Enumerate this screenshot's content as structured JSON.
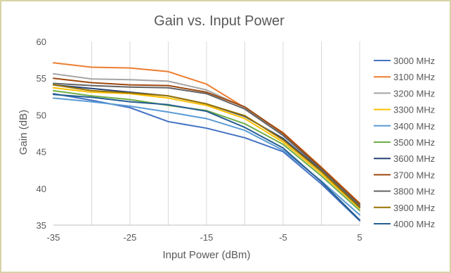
{
  "chart_data": {
    "type": "line",
    "title": "Gain vs. Input Power",
    "xlabel": "Input Power (dBm)",
    "ylabel": "Gain (dB)",
    "xlim": [
      -35,
      5
    ],
    "ylim": [
      35,
      60
    ],
    "xticks": [
      -35,
      -25,
      -15,
      -5,
      5
    ],
    "yticks": [
      35,
      40,
      45,
      50,
      55,
      60
    ],
    "grid": "vertical",
    "legend_position": "right",
    "series": [
      {
        "name": "3000 MHz",
        "color": "#4472c4",
        "x": [
          -35,
          -30,
          -25,
          -20,
          -15,
          -10,
          -5,
          0,
          5
        ],
        "y": [
          52.9,
          52.0,
          51.0,
          49.1,
          48.2,
          46.9,
          45.0,
          40.6,
          35.6
        ]
      },
      {
        "name": "3100 MHz",
        "color": "#ed7d31",
        "x": [
          -35,
          -30,
          -25,
          -20,
          -15,
          -10,
          -5,
          0,
          5
        ],
        "y": [
          57.1,
          56.5,
          56.4,
          55.9,
          54.2,
          51.0,
          47.6,
          42.9,
          38.0
        ]
      },
      {
        "name": "3200 MHz",
        "color": "#a5a5a5",
        "x": [
          -35,
          -30,
          -25,
          -20,
          -15,
          -10,
          -5,
          0,
          5
        ],
        "y": [
          55.6,
          54.9,
          54.8,
          54.6,
          53.4,
          51.0,
          47.4,
          42.7,
          37.8
        ]
      },
      {
        "name": "3300 MHz",
        "color": "#ffc000",
        "x": [
          -35,
          -30,
          -25,
          -20,
          -15,
          -10,
          -5,
          0,
          5
        ],
        "y": [
          53.7,
          53.1,
          52.9,
          52.3,
          51.3,
          49.5,
          46.3,
          42.0,
          37.3
        ]
      },
      {
        "name": "3400 MHz",
        "color": "#5b9bd5",
        "x": [
          -35,
          -30,
          -25,
          -20,
          -15,
          -10,
          -5,
          0,
          5
        ],
        "y": [
          52.3,
          51.8,
          51.2,
          50.4,
          49.5,
          47.9,
          45.2,
          41.0,
          36.4
        ]
      },
      {
        "name": "3500 MHz",
        "color": "#70ad47",
        "x": [
          -35,
          -30,
          -25,
          -20,
          -15,
          -10,
          -5,
          0,
          5
        ],
        "y": [
          53.3,
          52.6,
          52.1,
          51.3,
          50.6,
          48.8,
          46.0,
          41.7,
          37.0
        ]
      },
      {
        "name": "3600 MHz",
        "color": "#264478",
        "x": [
          -35,
          -30,
          -25,
          -20,
          -15,
          -10,
          -5,
          0,
          5
        ],
        "y": [
          54.1,
          53.6,
          53.1,
          52.6,
          51.5,
          49.8,
          46.8,
          42.4,
          37.5
        ]
      },
      {
        "name": "3700 MHz",
        "color": "#9e480e",
        "x": [
          -35,
          -30,
          -25,
          -20,
          -15,
          -10,
          -5,
          0,
          5
        ],
        "y": [
          55.0,
          54.4,
          54.1,
          54.0,
          53.1,
          51.1,
          47.5,
          42.8,
          37.9
        ]
      },
      {
        "name": "3800 MHz",
        "color": "#636363",
        "x": [
          -35,
          -30,
          -25,
          -20,
          -15,
          -10,
          -5,
          0,
          5
        ],
        "y": [
          54.3,
          54.0,
          53.8,
          53.7,
          52.9,
          50.8,
          47.2,
          42.6,
          37.7
        ]
      },
      {
        "name": "3900 MHz",
        "color": "#997300",
        "x": [
          -35,
          -30,
          -25,
          -20,
          -15,
          -10,
          -5,
          0,
          5
        ],
        "y": [
          54.1,
          53.3,
          53.0,
          52.6,
          51.5,
          49.9,
          46.6,
          42.3,
          37.4
        ]
      },
      {
        "name": "4000 MHz",
        "color": "#255e91",
        "x": [
          -35,
          -30,
          -25,
          -20,
          -15,
          -10,
          -5,
          0,
          5
        ],
        "y": [
          52.8,
          52.4,
          51.8,
          51.4,
          50.5,
          48.3,
          45.5,
          40.9,
          35.7
        ]
      }
    ]
  }
}
